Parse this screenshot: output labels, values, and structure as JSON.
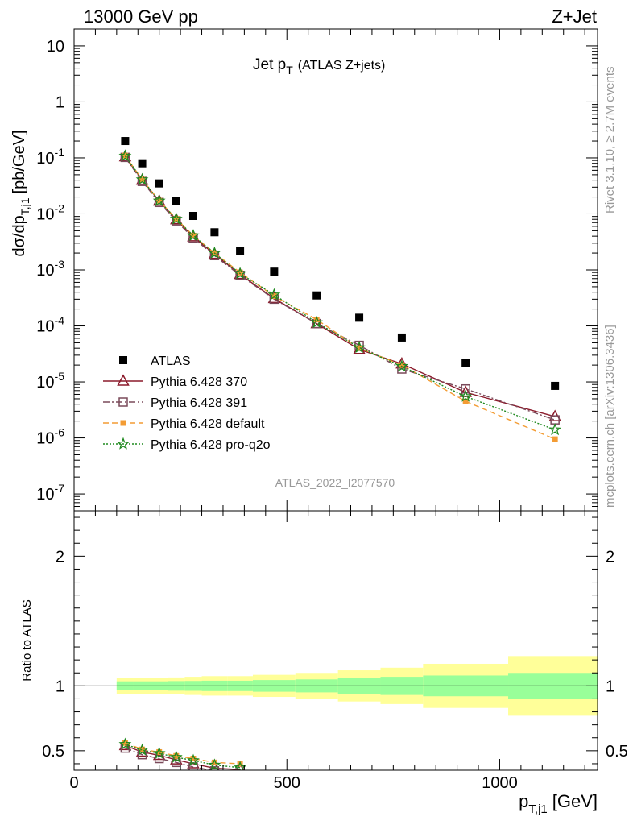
{
  "header": {
    "left": "13000 GeV pp",
    "right": "Z+Jet"
  },
  "side_labels": {
    "rivet": "Rivet 3.1.10, ≥ 2.7M events",
    "mcplots": "mcplots.cern.ch [arXiv:1306.3436]"
  },
  "chart_data": [
    {
      "type": "scatter",
      "title": "Jet p",
      "title_sub": "T",
      "title_suffix": "(ATLAS Z+jets)",
      "analysis_id": "ATLAS_2022_I2077570",
      "ylabel": "dσ/dp",
      "ylabel_sub": "T,j1",
      "ylabel_unit": "[pb/GeV]",
      "yscale": "log",
      "ylim": [
        5e-08,
        20
      ],
      "xlim": [
        0,
        1230
      ],
      "ytick_labels": [
        {
          "value": 10,
          "mantissa": "10",
          "exp": ""
        },
        {
          "value": 1,
          "mantissa": "1",
          "exp": ""
        },
        {
          "value": 0.1,
          "mantissa": "10",
          "exp": "-1"
        },
        {
          "value": 0.01,
          "mantissa": "10",
          "exp": "-2"
        },
        {
          "value": 0.001,
          "mantissa": "10",
          "exp": "-3"
        },
        {
          "value": 0.0001,
          "mantissa": "10",
          "exp": "-4"
        },
        {
          "value": 1e-05,
          "mantissa": "10",
          "exp": "-5"
        },
        {
          "value": 1e-06,
          "mantissa": "10",
          "exp": "-6"
        },
        {
          "value": 1e-07,
          "mantissa": "10",
          "exp": "-7"
        }
      ],
      "legend_position": "bottom-left",
      "series": [
        {
          "name": "ATLAS",
          "color": "#000000",
          "marker": "square-filled",
          "line": "none",
          "x": [
            120,
            160,
            200,
            240,
            280,
            330,
            390,
            470,
            570,
            670,
            770,
            920,
            1130
          ],
          "y": [
            0.2,
            0.08,
            0.035,
            0.017,
            0.0092,
            0.0047,
            0.0022,
            0.00093,
            0.00035,
            0.00014,
            6.2e-05,
            2.2e-05,
            8.5e-06
          ]
        },
        {
          "name": "Pythia 6.428 370",
          "color": "#8b1a2b",
          "marker": "triangle-open",
          "line": "solid",
          "x": [
            120,
            160,
            200,
            240,
            280,
            330,
            390,
            470,
            570,
            670,
            770,
            920,
            1130
          ],
          "y": [
            0.105,
            0.04,
            0.017,
            0.0079,
            0.0039,
            0.0019,
            0.00083,
            0.00031,
            0.00011,
            3.8e-05,
            2.1e-05,
            6.5e-06,
            2.4e-06
          ]
        },
        {
          "name": "Pythia 6.428 391",
          "color": "#7a4a5a",
          "marker": "square-open",
          "line": "dashdot",
          "x": [
            120,
            160,
            200,
            240,
            280,
            330,
            390,
            470,
            570,
            670,
            770,
            920,
            1130
          ],
          "y": [
            0.102,
            0.038,
            0.016,
            0.0075,
            0.0037,
            0.0018,
            0.0008,
            0.0003,
            0.00011,
            4.5e-05,
            1.7e-05,
            7.5e-06,
            2.1e-06
          ]
        },
        {
          "name": "Pythia 6.428 default",
          "color": "#f39c34",
          "marker": "square-filled-small",
          "line": "dashed",
          "x": [
            120,
            160,
            200,
            240,
            280,
            330,
            390,
            470,
            570,
            670,
            770,
            920,
            1130
          ],
          "y": [
            0.11,
            0.041,
            0.0172,
            0.0082,
            0.0041,
            0.002,
            0.0009,
            0.00034,
            0.00013,
            4e-05,
            2e-05,
            4.5e-06,
            9.5e-07
          ]
        },
        {
          "name": "Pythia 6.428 pro-q2o",
          "color": "#1f8a1f",
          "marker": "star-open",
          "line": "dotted",
          "x": [
            120,
            160,
            200,
            240,
            280,
            330,
            390,
            470,
            570,
            670,
            770,
            920,
            1130
          ],
          "y": [
            0.108,
            0.041,
            0.0171,
            0.0081,
            0.0041,
            0.002,
            0.00086,
            0.00036,
            0.000115,
            4.1e-05,
            1.9e-05,
            5.5e-06,
            1.4e-06
          ]
        }
      ]
    },
    {
      "type": "line",
      "ylabel": "Ratio to ATLAS",
      "xlabel": "p",
      "xlabel_sub": "T,j1",
      "xlabel_unit": "[GeV]",
      "xlim": [
        0,
        1230
      ],
      "ylim": [
        0.35,
        2.35
      ],
      "xticks": [
        0,
        500,
        1000
      ],
      "ytick_labels": [
        {
          "value": 0.5,
          "text": "0.5"
        },
        {
          "value": 1,
          "text": "1"
        },
        {
          "value": 2,
          "text": "2"
        }
      ],
      "uncertainty_bands": {
        "edges": [
          100,
          140,
          180,
          220,
          260,
          300,
          360,
          420,
          520,
          620,
          720,
          820,
          1020,
          1230
        ],
        "inner_half_width": [
          0.035,
          0.035,
          0.035,
          0.037,
          0.038,
          0.04,
          0.04,
          0.045,
          0.05,
          0.06,
          0.07,
          0.08,
          0.1
        ],
        "outer_half_width": [
          0.06,
          0.06,
          0.06,
          0.065,
          0.07,
          0.075,
          0.075,
          0.085,
          0.1,
          0.12,
          0.14,
          0.17,
          0.23
        ],
        "inner_color": "#99ff99",
        "outer_color": "#ffff99"
      },
      "series": [
        {
          "name": "Pythia 6.428 370",
          "color": "#8b1a2b",
          "marker": "triangle-open",
          "line": "solid",
          "x": [
            120,
            160,
            200,
            240,
            280,
            330,
            390
          ],
          "y": [
            0.54,
            0.49,
            0.465,
            0.43,
            0.4,
            0.365,
            0.355
          ]
        },
        {
          "name": "Pythia 6.428 391",
          "color": "#7a4a5a",
          "marker": "square-open",
          "line": "dashdot",
          "x": [
            120,
            160,
            200,
            240,
            280,
            330,
            390
          ],
          "y": [
            0.52,
            0.47,
            0.44,
            0.41,
            0.375,
            0.345,
            0.35
          ]
        },
        {
          "name": "Pythia 6.428 default",
          "color": "#f39c34",
          "marker": "square-filled-small",
          "line": "dashed",
          "x": [
            120,
            160,
            200,
            240,
            280,
            330,
            390
          ],
          "y": [
            0.56,
            0.51,
            0.49,
            0.46,
            0.44,
            0.41,
            0.4
          ]
        },
        {
          "name": "Pythia 6.428 pro-q2o",
          "color": "#1f8a1f",
          "marker": "star-open",
          "line": "dotted",
          "x": [
            120,
            160,
            200,
            240,
            280,
            330,
            390
          ],
          "y": [
            0.55,
            0.505,
            0.48,
            0.45,
            0.425,
            0.39,
            0.37
          ]
        }
      ]
    }
  ]
}
